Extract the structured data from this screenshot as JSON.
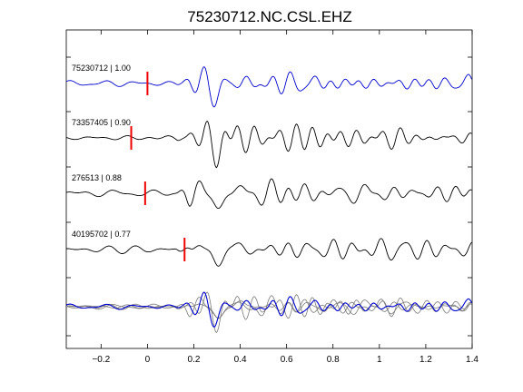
{
  "chart_data": {
    "type": "line",
    "title": "75230712.NC.CSL.EHZ",
    "xlabel": "",
    "ylabel": "",
    "xlim": [
      -0.35,
      1.4
    ],
    "xticks": [
      -0.2,
      0,
      0.2,
      0.4,
      0.6,
      0.8,
      1,
      1.2,
      1.4
    ],
    "xtick_labels": [
      "−0.2",
      "0",
      "0.2",
      "0.4",
      "0.6",
      "0.8",
      "1",
      "1.2",
      "1.4"
    ],
    "grid": false,
    "traces": [
      {
        "label": "75230712 | 1.00",
        "pick_time": 0.0,
        "color": "#0000cc",
        "pick_color": "#ee0000"
      },
      {
        "label": "73357405 | 0.90",
        "pick_time": -0.07,
        "color": "#000000",
        "pick_color": "#ee0000"
      },
      {
        "label": "276513 | 0.88",
        "pick_time": -0.01,
        "color": "#000000",
        "pick_color": "#ee0000"
      },
      {
        "label": "40195702 | 0.77",
        "pick_time": 0.16,
        "color": "#000000",
        "pick_color": "#ee0000"
      }
    ],
    "overlay": {
      "reference_color": "#0000cc",
      "others_color": "#7a7a7a"
    }
  }
}
